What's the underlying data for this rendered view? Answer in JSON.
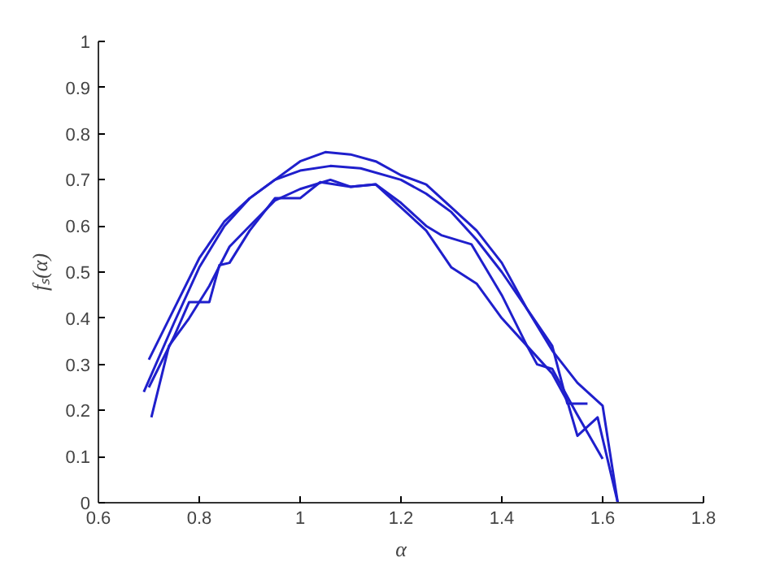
{
  "chart_data": {
    "type": "line",
    "xlabel": "α",
    "ylabel": "fₛ(α)",
    "xlim": [
      0.6,
      1.8
    ],
    "ylim": [
      0,
      1
    ],
    "xticks": [
      0.6,
      0.8,
      1,
      1.2,
      1.4,
      1.6,
      1.8
    ],
    "yticks": [
      0,
      0.1,
      0.2,
      0.3,
      0.4,
      0.5,
      0.6,
      0.7,
      0.8,
      0.9,
      1
    ],
    "grid": false,
    "line_style": "solid",
    "marker": "none",
    "series": [
      {
        "color": "#1f1fcc",
        "x": [
          0.7,
          0.75,
          0.8,
          0.85,
          0.9,
          0.95,
          1.0,
          1.05,
          1.1,
          1.15,
          1.2,
          1.25,
          1.3,
          1.35,
          1.4,
          1.45,
          1.5,
          1.55,
          1.6,
          1.63
        ],
        "values": [
          0.31,
          0.42,
          0.53,
          0.61,
          0.66,
          0.7,
          0.74,
          0.76,
          0.755,
          0.74,
          0.71,
          0.69,
          0.64,
          0.59,
          0.52,
          0.42,
          0.33,
          0.26,
          0.21,
          0.0
        ]
      },
      {
        "color": "#1f1fcc",
        "x": [
          0.69,
          0.75,
          0.8,
          0.85,
          0.9,
          0.95,
          1.0,
          1.06,
          1.12,
          1.2,
          1.25,
          1.3,
          1.35,
          1.4,
          1.45,
          1.5,
          1.53,
          1.57
        ],
        "values": [
          0.24,
          0.39,
          0.51,
          0.6,
          0.66,
          0.7,
          0.72,
          0.73,
          0.725,
          0.7,
          0.67,
          0.63,
          0.57,
          0.5,
          0.42,
          0.34,
          0.215,
          0.215
        ]
      },
      {
        "color": "#1f1fcc",
        "x": [
          0.7,
          0.75,
          0.78,
          0.82,
          0.84,
          0.86,
          0.9,
          0.95,
          1.0,
          1.04,
          1.1,
          1.15,
          1.2,
          1.25,
          1.28,
          1.34,
          1.4,
          1.45,
          1.5,
          1.53,
          1.55,
          1.59,
          1.63
        ],
        "values": [
          0.25,
          0.36,
          0.435,
          0.435,
          0.515,
          0.52,
          0.59,
          0.66,
          0.66,
          0.695,
          0.685,
          0.69,
          0.65,
          0.6,
          0.58,
          0.56,
          0.45,
          0.34,
          0.28,
          0.22,
          0.145,
          0.185,
          0.0
        ]
      },
      {
        "color": "#1f1fcc",
        "x": [
          0.705,
          0.74,
          0.78,
          0.82,
          0.86,
          0.9,
          0.95,
          1.0,
          1.06,
          1.1,
          1.15,
          1.2,
          1.25,
          1.3,
          1.35,
          1.4,
          1.45,
          1.47,
          1.5,
          1.55,
          1.6
        ],
        "values": [
          0.185,
          0.34,
          0.4,
          0.47,
          0.555,
          0.6,
          0.655,
          0.68,
          0.7,
          0.685,
          0.69,
          0.64,
          0.59,
          0.51,
          0.475,
          0.4,
          0.34,
          0.3,
          0.29,
          0.19,
          0.095
        ]
      }
    ]
  }
}
